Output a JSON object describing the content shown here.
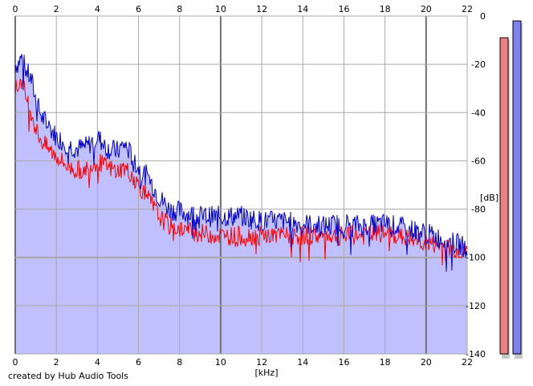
{
  "credit": "created by Hub Audio Tools",
  "colors": {
    "background": "#ffffff",
    "plot_fill": "#c0c0ff",
    "grid": "#a8a8a8",
    "grid_major": "#707070",
    "series_left": "#ff0000",
    "series_right": "#0000cc",
    "meter_left": "#f08080",
    "meter_right": "#8080f0"
  },
  "chart_data": {
    "type": "line",
    "xlabel": "[kHz]",
    "ylabel": "[dB]",
    "xlim": [
      0,
      22
    ],
    "ylim": [
      -140,
      0
    ],
    "x_ticks": [
      0,
      2,
      4,
      6,
      8,
      10,
      12,
      14,
      16,
      18,
      20,
      22
    ],
    "x_tick_labels": [
      "0",
      "2",
      "4",
      "6",
      "8",
      "10",
      "12",
      "14",
      "16",
      "18",
      "20",
      "22"
    ],
    "y_ticks": [
      0,
      -20,
      -40,
      -60,
      -80,
      -100,
      -120,
      -140
    ],
    "y_tick_labels": [
      "0",
      "-20",
      "-40",
      "-60",
      "-80",
      "-100",
      "-120",
      "-140"
    ],
    "grid": true,
    "x_axis_position": "top and bottom",
    "y_axis_position": "right",
    "series": [
      {
        "color": "#0000cc",
        "x": [
          0.1,
          0.3,
          0.5,
          0.8,
          1.0,
          1.3,
          1.6,
          2.0,
          2.5,
          3.0,
          3.5,
          4.0,
          4.5,
          5.0,
          5.3,
          5.6,
          6.0,
          6.5,
          7.0,
          7.5,
          8.0,
          8.5,
          9.0,
          10.0,
          11.0,
          12.0,
          13.0,
          14.0,
          15.0,
          16.0,
          17.0,
          18.0,
          19.0,
          20.0,
          21.0,
          22.0
        ],
        "y": [
          -20,
          -17,
          -22,
          -27,
          -35,
          -42,
          -45,
          -50,
          -53,
          -55,
          -54,
          -50,
          -55,
          -56,
          -53,
          -57,
          -63,
          -67,
          -75,
          -80,
          -81,
          -82,
          -83,
          -83,
          -83,
          -85,
          -85,
          -86,
          -87,
          -86,
          -87,
          -86,
          -88,
          -90,
          -93,
          -96
        ]
      },
      {
        "color": "#ff0000",
        "x": [
          0.1,
          0.3,
          0.5,
          0.8,
          1.0,
          1.3,
          1.6,
          2.0,
          2.5,
          3.0,
          3.5,
          4.0,
          4.5,
          5.0,
          5.3,
          5.6,
          6.0,
          6.5,
          7.0,
          7.5,
          8.0,
          8.5,
          9.0,
          10.0,
          11.0,
          12.0,
          13.0,
          14.0,
          15.0,
          16.0,
          17.0,
          18.0,
          19.0,
          20.0,
          21.0,
          22.0
        ],
        "y": [
          -30,
          -26,
          -33,
          -40,
          -47,
          -52,
          -55,
          -58,
          -62,
          -64,
          -63,
          -60,
          -63,
          -64,
          -63,
          -65,
          -70,
          -76,
          -83,
          -87,
          -88,
          -89,
          -90,
          -91,
          -91,
          -91,
          -91,
          -91,
          -91,
          -91,
          -91,
          -90,
          -92,
          -94,
          -96,
          -98
        ]
      }
    ],
    "level_meters": [
      {
        "channel": "left",
        "color": "#f08080",
        "top_db": -9
      },
      {
        "channel": "right",
        "color": "#8080f0",
        "top_db": -2
      }
    ]
  }
}
